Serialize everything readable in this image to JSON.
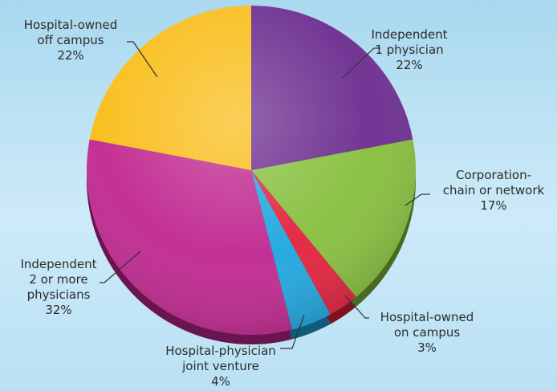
{
  "chart_data": {
    "type": "pie",
    "slices": [
      {
        "label_lines": [
          "Independent",
          "1 physician"
        ],
        "value_label": "22%",
        "value": 22,
        "color": "#6a2b8e"
      },
      {
        "label_lines": [
          "Corporation-",
          "chain or network"
        ],
        "value_label": "17%",
        "value": 17,
        "color": "#86bf3c"
      },
      {
        "label_lines": [
          "Hospital-owned",
          "on campus"
        ],
        "value_label": "3%",
        "value": 3,
        "color": "#e3203c"
      },
      {
        "label_lines": [
          "Hospital-physician",
          "joint venture"
        ],
        "value_label": "4%",
        "value": 4,
        "color": "#1ea6df"
      },
      {
        "label_lines": [
          "Independent",
          "2 or more",
          "physicians"
        ],
        "value_label": "32%",
        "value": 32,
        "color": "#c0268f"
      },
      {
        "label_lines": [
          "Hospital-owned",
          "off campus"
        ],
        "value_label": "22%",
        "value": 22,
        "color": "#f9bd17"
      }
    ],
    "start_angle_deg": 0,
    "direction": "clockwise",
    "legend": "none"
  }
}
